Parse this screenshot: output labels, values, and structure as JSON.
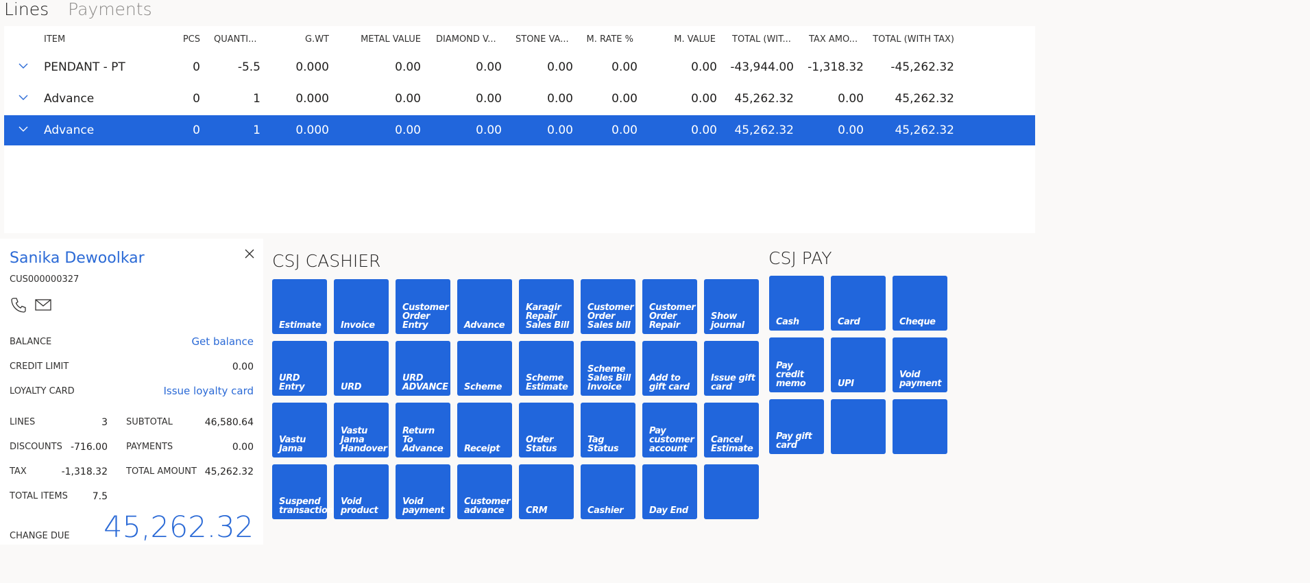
{
  "tabs": {
    "lines": "Lines",
    "payments": "Payments"
  },
  "grid": {
    "headers": [
      "ITEM",
      "PCS",
      "QUANTI...",
      "G.WT",
      "METAL VALUE",
      "DIAMOND V...",
      "STONE VA...",
      "M. RATE %",
      "M. VALUE",
      "TOTAL (WIT...",
      "TAX AMO...",
      "TOTAL (WITH TAX)"
    ],
    "rows": [
      {
        "item": "PENDANT - PT",
        "pcs": "0",
        "qty": "-5.5",
        "gwt": "0.000",
        "metal": "0.00",
        "diamond": "0.00",
        "stone": "0.00",
        "mrate": "0.00",
        "mvalue": "0.00",
        "total_wo": "-43,944.00",
        "tax": "-1,318.32",
        "total": "-45,262.32"
      },
      {
        "item": "Advance",
        "pcs": "0",
        "qty": "1",
        "gwt": "0.000",
        "metal": "0.00",
        "diamond": "0.00",
        "stone": "0.00",
        "mrate": "0.00",
        "mvalue": "0.00",
        "total_wo": "45,262.32",
        "tax": "0.00",
        "total": "45,262.32"
      },
      {
        "item": "Advance",
        "pcs": "0",
        "qty": "1",
        "gwt": "0.000",
        "metal": "0.00",
        "diamond": "0.00",
        "stone": "0.00",
        "mrate": "0.00",
        "mvalue": "0.00",
        "total_wo": "45,262.32",
        "tax": "0.00",
        "total": "45,262.32"
      }
    ]
  },
  "customer": {
    "name": "Sanika Dewoolkar",
    "id": "CUS000000327",
    "balance_label": "BALANCE",
    "balance_link": "Get balance",
    "credit_label": "CREDIT LIMIT",
    "credit_value": "0.00",
    "loyalty_label": "LOYALTY CARD",
    "loyalty_link": "Issue loyalty card",
    "lines_label": "LINES",
    "lines_value": "3",
    "discounts_label": "DISCOUNTS",
    "discounts_value": "-716.00",
    "tax_label": "TAX",
    "tax_value": "-1,318.32",
    "items_label": "TOTAL ITEMS",
    "items_value": "7.5",
    "subtotal_label": "SUBTOTAL",
    "subtotal_value": "46,580.64",
    "payments_label": "PAYMENTS",
    "payments_value": "0.00",
    "total_label": "TOTAL AMOUNT",
    "total_value": "45,262.32",
    "change_label": "CHANGE DUE",
    "change_value": "45,262.32"
  },
  "cashier": {
    "title": "CSJ CASHIER",
    "buttons": [
      "Estimate",
      "Invoice",
      "Customer Order Entry",
      "Advance",
      "Karagir Repair Sales Bill",
      "Customer Order Sales bill",
      "Customer Order Repair",
      "Show journal",
      "URD Entry",
      "URD",
      "URD ADVANCE",
      "Scheme",
      "Scheme Estimate",
      "Scheme Sales Bill Invoice",
      "Add to gift card",
      "Issue gift card",
      "Vastu Jama",
      "Vastu Jama Handover",
      "Return To Advance",
      "Receipt",
      "Order Status",
      "Tag Status",
      "Pay customer account",
      "Cancel Estimate",
      "Suspend transaction",
      "Void product",
      "Void payment",
      "Customer advance",
      "CRM",
      "Cashier",
      "Day End",
      ""
    ]
  },
  "pay": {
    "title": "CSJ PAY",
    "buttons": [
      "Cash",
      "Card",
      "Cheque",
      "Pay credit memo",
      "UPI",
      "Void payment",
      "Pay gift card",
      "",
      ""
    ]
  },
  "colors": {
    "accent": "#2166dc",
    "link": "#2b6ad6"
  }
}
